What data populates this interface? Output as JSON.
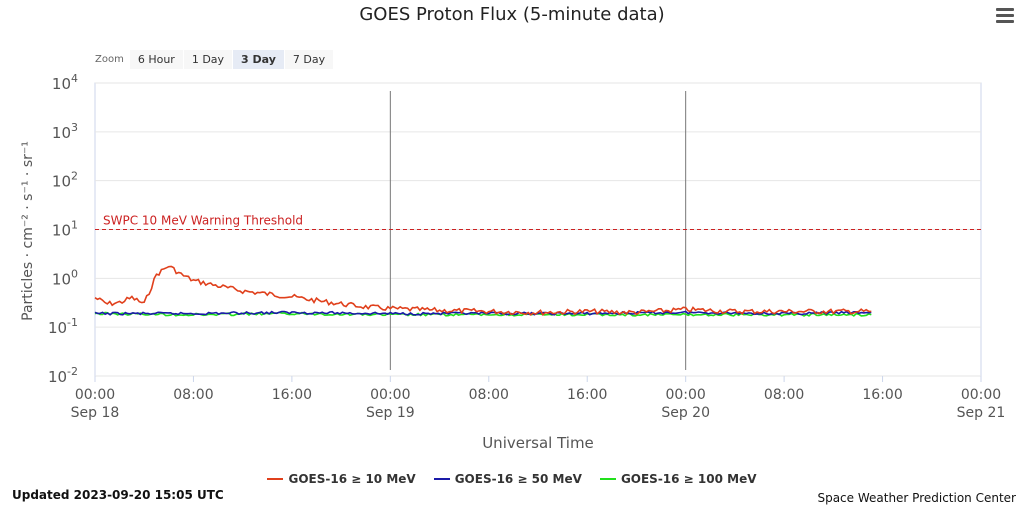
{
  "title": "GOES Proton Flux (5-minute data)",
  "menu_icon": "hamburger-menu-icon",
  "zoom": {
    "label": "Zoom",
    "buttons": [
      "6 Hour",
      "1 Day",
      "3 Day",
      "7 Day"
    ],
    "selected": "3 Day"
  },
  "footer": {
    "updated": "Updated 2023-09-20 15:05 UTC",
    "credit": "Space Weather Prediction Center"
  },
  "colors": {
    "series_10": "#e0401c",
    "series_50": "#1a1aa8",
    "series_100": "#22e01c",
    "threshold": "#cc2222"
  },
  "chart_data": {
    "type": "line",
    "xlabel": "Universal Time",
    "ylabel": "Particles · cm⁻² · s⁻¹ · sr⁻¹",
    "y_scale": "log",
    "ylim": [
      0.01,
      10000
    ],
    "y_ticks": [
      {
        "value": 0.01,
        "base": "10",
        "exp": "-2"
      },
      {
        "value": 0.1,
        "base": "10",
        "exp": "-1"
      },
      {
        "value": 1,
        "base": "10",
        "exp": "0"
      },
      {
        "value": 10,
        "base": "10",
        "exp": "1"
      },
      {
        "value": 100,
        "base": "10",
        "exp": "2"
      },
      {
        "value": 1000,
        "base": "10",
        "exp": "3"
      },
      {
        "value": 10000,
        "base": "10",
        "exp": "4"
      }
    ],
    "xlim": [
      "2023-09-18 00:00",
      "2023-09-21 00:00"
    ],
    "x_ticks": [
      {
        "time": "2023-09-18 00:00",
        "label": "00:00",
        "sublabel": "Sep 18"
      },
      {
        "time": "2023-09-18 08:00",
        "label": "08:00",
        "sublabel": ""
      },
      {
        "time": "2023-09-18 16:00",
        "label": "16:00",
        "sublabel": ""
      },
      {
        "time": "2023-09-19 00:00",
        "label": "00:00",
        "sublabel": "Sep 19"
      },
      {
        "time": "2023-09-19 08:00",
        "label": "08:00",
        "sublabel": ""
      },
      {
        "time": "2023-09-19 16:00",
        "label": "16:00",
        "sublabel": ""
      },
      {
        "time": "2023-09-20 00:00",
        "label": "00:00",
        "sublabel": "Sep 20"
      },
      {
        "time": "2023-09-20 08:00",
        "label": "08:00",
        "sublabel": ""
      },
      {
        "time": "2023-09-20 16:00",
        "label": "16:00",
        "sublabel": ""
      },
      {
        "time": "2023-09-21 00:00",
        "label": "00:00",
        "sublabel": "Sep 21"
      }
    ],
    "day_boundaries": [
      "2023-09-19 00:00",
      "2023-09-20 00:00"
    ],
    "grid": true,
    "legend_position": "bottom-center",
    "threshold": {
      "value": 10,
      "label": "SWPC 10 MeV Warning Threshold"
    },
    "series": [
      {
        "name": "GOES-16 ≥ 10 MeV",
        "x": [
          "2023-09-18 00:00",
          "2023-09-18 01:00",
          "2023-09-18 02:00",
          "2023-09-18 03:00",
          "2023-09-18 04:00",
          "2023-09-18 05:00",
          "2023-09-18 06:00",
          "2023-09-18 07:00",
          "2023-09-18 08:00",
          "2023-09-18 10:00",
          "2023-09-18 12:00",
          "2023-09-18 14:00",
          "2023-09-18 16:00",
          "2023-09-18 18:00",
          "2023-09-18 20:00",
          "2023-09-18 22:00",
          "2023-09-19 00:00",
          "2023-09-19 04:00",
          "2023-09-19 08:00",
          "2023-09-19 12:00",
          "2023-09-19 16:00",
          "2023-09-19 20:00",
          "2023-09-20 00:00",
          "2023-09-20 04:00",
          "2023-09-20 08:00",
          "2023-09-20 12:00",
          "2023-09-20 15:05"
        ],
        "y": [
          0.4,
          0.3,
          0.32,
          0.4,
          0.3,
          1.2,
          1.8,
          1.2,
          0.9,
          0.7,
          0.55,
          0.48,
          0.42,
          0.35,
          0.3,
          0.26,
          0.24,
          0.22,
          0.21,
          0.2,
          0.21,
          0.2,
          0.23,
          0.21,
          0.21,
          0.21,
          0.21
        ]
      },
      {
        "name": "GOES-16 ≥ 50 MeV",
        "x": [
          "2023-09-18 00:00",
          "2023-09-18 08:00",
          "2023-09-18 16:00",
          "2023-09-19 00:00",
          "2023-09-19 08:00",
          "2023-09-19 16:00",
          "2023-09-20 00:00",
          "2023-09-20 08:00",
          "2023-09-20 15:05"
        ],
        "y": [
          0.19,
          0.19,
          0.2,
          0.19,
          0.19,
          0.19,
          0.2,
          0.19,
          0.2
        ]
      },
      {
        "name": "GOES-16 ≥ 100 MeV",
        "x": [
          "2023-09-18 00:00",
          "2023-09-18 08:00",
          "2023-09-18 16:00",
          "2023-09-19 00:00",
          "2023-09-19 08:00",
          "2023-09-19 16:00",
          "2023-09-20 00:00",
          "2023-09-20 08:00",
          "2023-09-20 15:05"
        ],
        "y": [
          0.19,
          0.18,
          0.19,
          0.18,
          0.18,
          0.18,
          0.18,
          0.18,
          0.18
        ]
      }
    ]
  }
}
